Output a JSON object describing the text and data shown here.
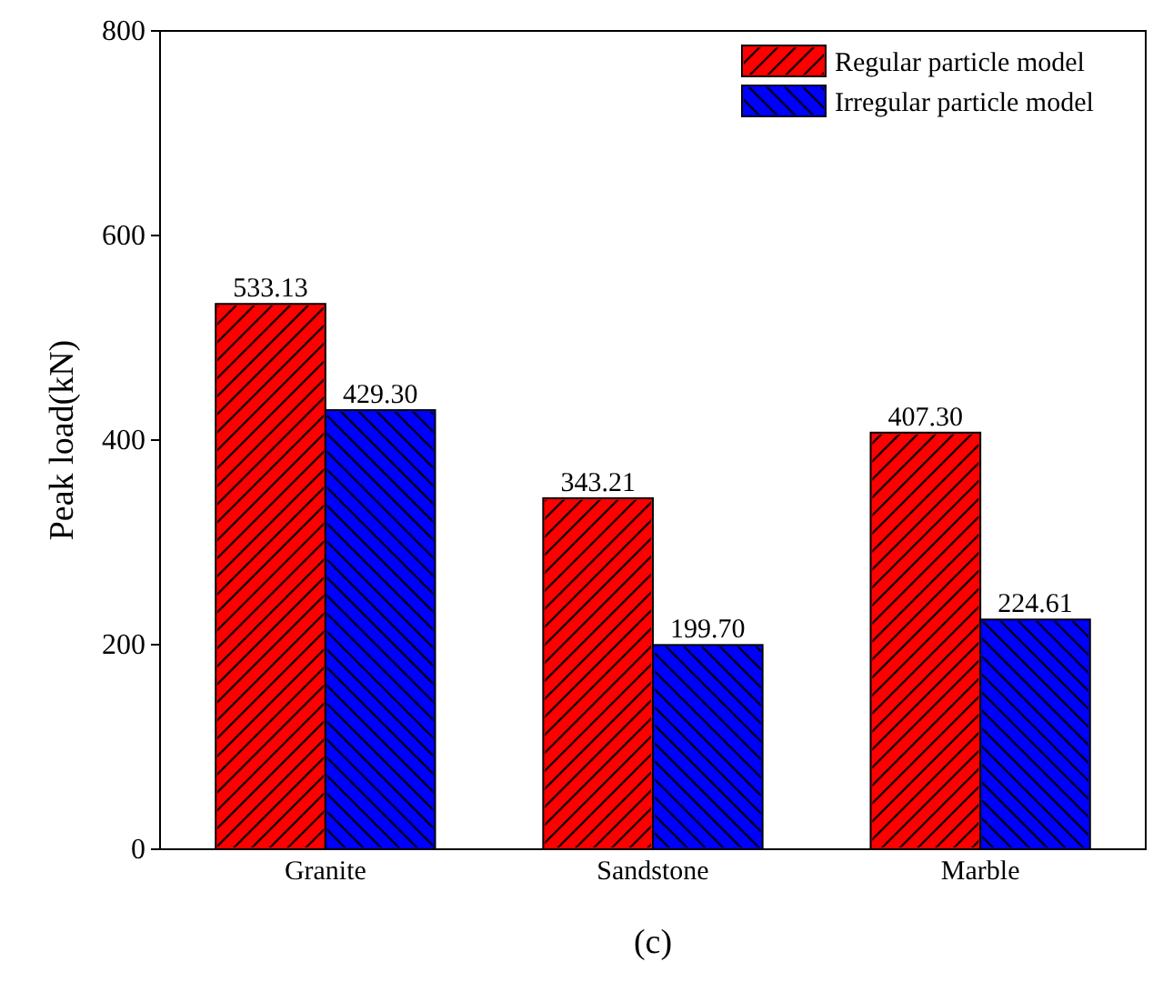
{
  "chart_data": {
    "type": "bar",
    "title": "(c)",
    "ylabel": "Peak load(kN)",
    "categories": [
      "Granite",
      "Sandstone",
      "Marble"
    ],
    "series": [
      {
        "name": "Regular particle model",
        "color": "#ff0000",
        "values": [
          533.13,
          343.21,
          407.3
        ]
      },
      {
        "name": "Irregular particle model",
        "color": "#0000ff",
        "values": [
          429.3,
          199.7,
          224.61
        ]
      }
    ],
    "value_labels": [
      [
        "533.13",
        "343.21",
        "407.30"
      ],
      [
        "429.30",
        "199.70",
        "224.61"
      ]
    ],
    "ylim": [
      0,
      800
    ],
    "yticks": [
      0,
      200,
      400,
      600,
      800
    ],
    "legend": "top right",
    "grid": false
  }
}
